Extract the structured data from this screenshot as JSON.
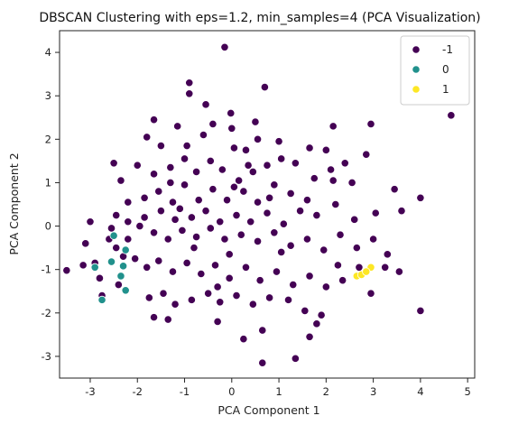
{
  "chart_data": {
    "type": "scatter",
    "title": "DBSCAN Clustering with eps=1.2, min_samples=4 (PCA Visualization)",
    "xlabel": "PCA Component 1",
    "ylabel": "PCA Component 2",
    "xlim": [
      -3.65,
      5.15
    ],
    "ylim": [
      -3.5,
      4.5
    ],
    "xticks": [
      -3,
      -2,
      -1,
      0,
      1,
      2,
      3,
      4,
      5
    ],
    "yticks": [
      -3,
      -2,
      -1,
      0,
      1,
      2,
      3,
      4
    ],
    "grid": false,
    "legend_position": "top-right",
    "series": [
      {
        "name": "-1",
        "color": "#440154",
        "points": [
          [
            -0.15,
            4.12
          ],
          [
            -0.9,
            3.3
          ],
          [
            -0.9,
            3.05
          ],
          [
            -0.55,
            2.8
          ],
          [
            0.7,
            3.2
          ],
          [
            -0.4,
            2.35
          ],
          [
            -0.02,
            2.6
          ],
          [
            0.0,
            2.25
          ],
          [
            0.5,
            2.4
          ],
          [
            -1.65,
            2.45
          ],
          [
            -1.8,
            2.05
          ],
          [
            -1.5,
            1.85
          ],
          [
            -1.15,
            2.3
          ],
          [
            -0.6,
            2.1
          ],
          [
            0.05,
            1.8
          ],
          [
            0.3,
            1.75
          ],
          [
            0.55,
            2.0
          ],
          [
            -2.0,
            1.4
          ],
          [
            -2.35,
            1.05
          ],
          [
            -1.65,
            1.2
          ],
          [
            -1.3,
            1.35
          ],
          [
            -1.0,
            1.55
          ],
          [
            -0.75,
            1.25
          ],
          [
            -0.45,
            1.5
          ],
          [
            -0.2,
            1.3
          ],
          [
            0.15,
            1.05
          ],
          [
            0.45,
            1.25
          ],
          [
            0.75,
            1.4
          ],
          [
            1.05,
            1.55
          ],
          [
            1.35,
            1.45
          ],
          [
            1.65,
            1.8
          ],
          [
            2.0,
            1.75
          ],
          [
            2.4,
            1.45
          ],
          [
            2.85,
            1.65
          ],
          [
            2.15,
            2.3
          ],
          [
            2.55,
            1.0
          ],
          [
            2.15,
            1.05
          ],
          [
            1.75,
            1.1
          ],
          [
            1.25,
            0.75
          ],
          [
            0.9,
            0.95
          ],
          [
            0.55,
            0.55
          ],
          [
            0.25,
            0.8
          ],
          [
            -0.1,
            0.6
          ],
          [
            -0.4,
            0.85
          ],
          [
            -0.7,
            0.6
          ],
          [
            -1.0,
            0.95
          ],
          [
            -1.25,
            0.55
          ],
          [
            -1.55,
            0.8
          ],
          [
            -1.85,
            0.65
          ],
          [
            -2.2,
            0.55
          ],
          [
            -2.45,
            0.25
          ],
          [
            -3.0,
            0.1
          ],
          [
            -2.55,
            -0.05
          ],
          [
            -2.2,
            0.1
          ],
          [
            -1.85,
            0.2
          ],
          [
            -1.5,
            0.35
          ],
          [
            -1.2,
            0.15
          ],
          [
            -0.85,
            0.2
          ],
          [
            -0.55,
            0.35
          ],
          [
            -0.25,
            0.1
          ],
          [
            0.1,
            0.25
          ],
          [
            0.4,
            0.1
          ],
          [
            0.75,
            0.3
          ],
          [
            1.1,
            0.05
          ],
          [
            1.45,
            0.35
          ],
          [
            1.8,
            0.25
          ],
          [
            2.2,
            0.5
          ],
          [
            2.6,
            0.15
          ],
          [
            3.05,
            0.3
          ],
          [
            3.45,
            0.85
          ],
          [
            3.6,
            0.35
          ],
          [
            4.0,
            0.65
          ],
          [
            4.65,
            2.55
          ],
          [
            2.95,
            2.35
          ],
          [
            -1.95,
            0.0
          ],
          [
            -1.65,
            -0.15
          ],
          [
            -1.35,
            -0.3
          ],
          [
            -1.05,
            -0.1
          ],
          [
            -0.75,
            -0.25
          ],
          [
            -0.45,
            -0.05
          ],
          [
            -0.15,
            -0.3
          ],
          [
            0.2,
            -0.2
          ],
          [
            0.55,
            -0.35
          ],
          [
            0.9,
            -0.15
          ],
          [
            1.25,
            -0.45
          ],
          [
            1.6,
            -0.3
          ],
          [
            1.95,
            -0.55
          ],
          [
            2.3,
            -0.2
          ],
          [
            2.65,
            -0.5
          ],
          [
            3.0,
            -0.3
          ],
          [
            3.3,
            -0.65
          ],
          [
            -2.05,
            -0.75
          ],
          [
            -1.8,
            -0.95
          ],
          [
            -1.55,
            -0.8
          ],
          [
            -1.25,
            -1.05
          ],
          [
            -0.95,
            -0.85
          ],
          [
            -0.65,
            -1.1
          ],
          [
            -0.35,
            -0.9
          ],
          [
            -0.05,
            -1.2
          ],
          [
            0.3,
            -0.95
          ],
          [
            0.6,
            -1.25
          ],
          [
            0.95,
            -1.05
          ],
          [
            1.3,
            -1.35
          ],
          [
            1.65,
            -1.15
          ],
          [
            2.0,
            -1.4
          ],
          [
            2.35,
            -1.25
          ],
          [
            2.95,
            -1.55
          ],
          [
            3.25,
            -0.95
          ],
          [
            3.55,
            -1.05
          ],
          [
            -2.75,
            -1.6
          ],
          [
            -1.75,
            -1.65
          ],
          [
            -1.45,
            -1.55
          ],
          [
            -1.2,
            -1.8
          ],
          [
            -0.85,
            -1.7
          ],
          [
            -0.5,
            -1.55
          ],
          [
            -0.25,
            -1.75
          ],
          [
            0.1,
            -1.6
          ],
          [
            0.45,
            -1.8
          ],
          [
            0.8,
            -1.65
          ],
          [
            1.2,
            -1.7
          ],
          [
            1.55,
            -1.95
          ],
          [
            1.9,
            -2.05
          ],
          [
            -1.65,
            -2.1
          ],
          [
            -1.35,
            -2.15
          ],
          [
            -0.3,
            -2.2
          ],
          [
            0.65,
            -2.4
          ],
          [
            1.8,
            -2.25
          ],
          [
            1.65,
            -2.55
          ],
          [
            0.65,
            -3.15
          ],
          [
            1.35,
            -3.05
          ],
          [
            4.0,
            -1.95
          ],
          [
            -3.5,
            -1.02
          ],
          [
            -3.15,
            -0.9
          ],
          [
            -3.1,
            -0.4
          ],
          [
            -2.9,
            -0.85
          ],
          [
            -2.45,
            -0.5
          ],
          [
            -2.3,
            -0.7
          ],
          [
            -2.6,
            -0.3
          ],
          [
            -2.8,
            -1.2
          ],
          [
            -2.4,
            -1.35
          ],
          [
            -2.5,
            1.45
          ],
          [
            -2.2,
            -0.3
          ],
          [
            -0.05,
            -0.65
          ],
          [
            0.05,
            0.9
          ],
          [
            1.0,
            1.95
          ],
          [
            0.35,
            1.4
          ],
          [
            -0.95,
            1.85
          ],
          [
            -1.3,
            1.0
          ],
          [
            -1.1,
            0.4
          ],
          [
            0.8,
            0.65
          ],
          [
            1.6,
            0.6
          ],
          [
            2.1,
            1.3
          ],
          [
            2.25,
            -0.9
          ],
          [
            1.05,
            -0.6
          ],
          [
            -0.3,
            -1.4
          ],
          [
            0.25,
            -2.6
          ],
          [
            -0.8,
            -0.5
          ],
          [
            2.7,
            -0.95
          ]
        ]
      },
      {
        "name": "0",
        "color": "#21918c",
        "points": [
          [
            -2.5,
            -0.22
          ],
          [
            -2.55,
            -0.82
          ],
          [
            -2.35,
            -1.15
          ],
          [
            -2.3,
            -0.92
          ],
          [
            -2.9,
            -0.95
          ],
          [
            -2.25,
            -1.48
          ],
          [
            -2.25,
            -0.55
          ],
          [
            -2.75,
            -1.7
          ]
        ]
      },
      {
        "name": "1",
        "color": "#fde725",
        "points": [
          [
            2.65,
            -1.15
          ],
          [
            2.75,
            -1.12
          ],
          [
            2.95,
            -0.95
          ],
          [
            2.85,
            -1.05
          ]
        ]
      }
    ]
  }
}
